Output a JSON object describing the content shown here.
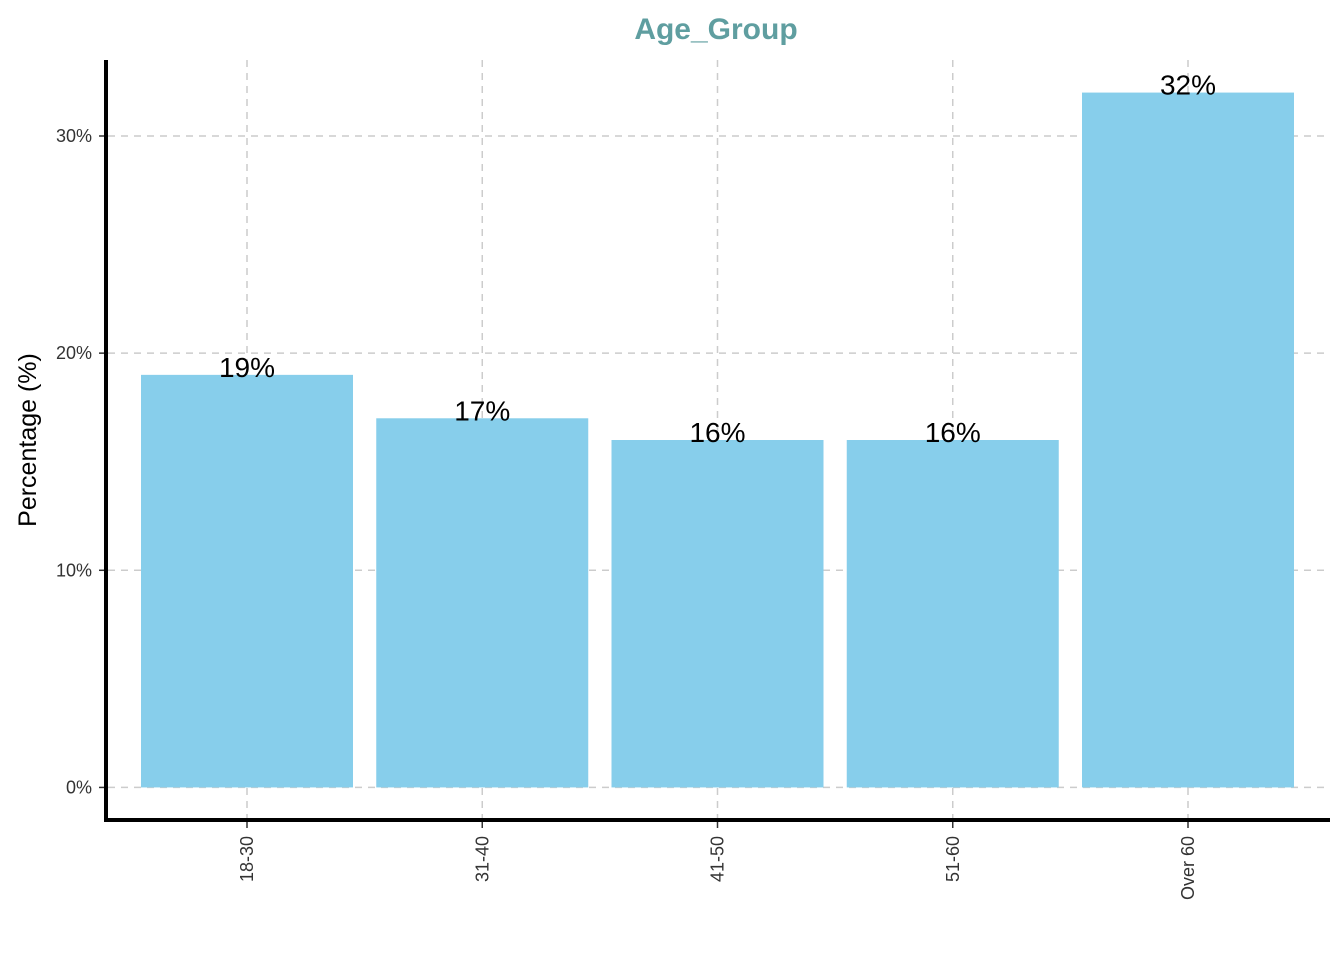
{
  "colors": {
    "bar": "#87CEEB",
    "title": "#5F9EA0",
    "axis": "#000000",
    "grid": "#cccccc"
  },
  "chart_data": {
    "type": "bar",
    "title": "Age_Group",
    "xlabel": "",
    "ylabel": "Percentage (%)",
    "categories": [
      "18-30",
      "31-40",
      "41-50",
      "51-60",
      "Over 60"
    ],
    "values": [
      19,
      17,
      16,
      16,
      32
    ],
    "value_labels": [
      "19%",
      "17%",
      "16%",
      "16%",
      "32%"
    ],
    "y_ticks": [
      0,
      10,
      20,
      30
    ],
    "y_tick_labels": [
      "0%",
      "10%",
      "20%",
      "30%"
    ],
    "ylim": [
      -1.5,
      33.5
    ],
    "grid": true,
    "legend": "none"
  }
}
